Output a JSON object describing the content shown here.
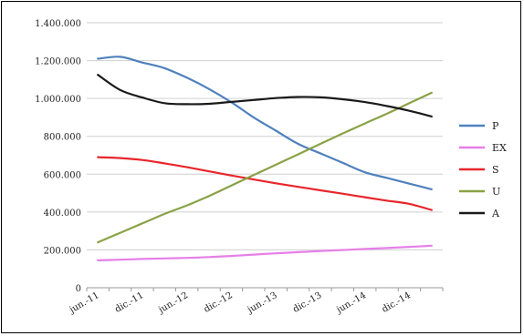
{
  "chart_data": {
    "type": "line",
    "categories": [
      "jun.-11",
      "dic.-11",
      "jun.-12",
      "dic.-12",
      "jun.-13",
      "dic.-13",
      "jun.-14",
      "dic.-14"
    ],
    "x": [
      "jun.-11",
      "sep.-11",
      "dic.-11",
      "mar.-12",
      "jun.-12",
      "sep.-12",
      "dic.-12",
      "mar.-13",
      "jun.-13",
      "sep.-13",
      "dic.-13",
      "mar.-14",
      "jun.-14",
      "sep.-14",
      "dic.-14",
      "mar.-15"
    ],
    "y_ticks": [
      "0",
      "200.000",
      "400.000",
      "600.000",
      "800.000",
      "1.000.000",
      "1.200.000",
      "1.400.000"
    ],
    "ylim": [
      0,
      1400000
    ],
    "grid": true,
    "legend_position": "right",
    "series": [
      {
        "name": "P",
        "color": "#4f81bd",
        "values": [
          1210000,
          1220000,
          1190000,
          1160000,
          1110000,
          1050000,
          980000,
          900000,
          830000,
          760000,
          710000,
          660000,
          610000,
          580000,
          550000,
          520000
        ]
      },
      {
        "name": "EX",
        "color": "#e67fe8",
        "values": [
          145000,
          148000,
          152000,
          155000,
          158000,
          162000,
          168000,
          175000,
          182000,
          188000,
          194000,
          199000,
          205000,
          210000,
          216000,
          222000
        ]
      },
      {
        "name": "S",
        "color": "#e8262b",
        "values": [
          690000,
          685000,
          675000,
          657000,
          637000,
          615000,
          593000,
          572000,
          552000,
          533000,
          515000,
          497000,
          478000,
          460000,
          443000,
          411000
        ]
      },
      {
        "name": "U",
        "color": "#8aa246",
        "values": [
          240000,
          290000,
          340000,
          390000,
          435000,
          485000,
          540000,
          595000,
          650000,
          705000,
          760000,
          815000,
          868000,
          920000,
          975000,
          1030000
        ]
      },
      {
        "name": "A",
        "color": "#1a1a1a",
        "values": [
          1125000,
          1045000,
          1005000,
          975000,
          970000,
          972000,
          982000,
          992000,
          1002000,
          1008000,
          1006000,
          996000,
          981000,
          960000,
          935000,
          905000
        ]
      }
    ]
  }
}
